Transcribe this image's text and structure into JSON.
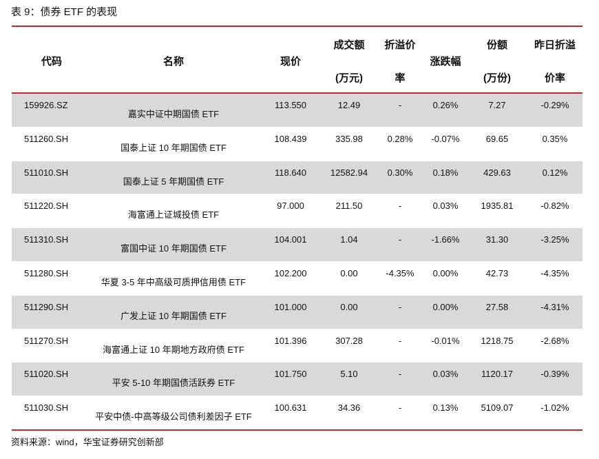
{
  "title": "表 9：债券 ETF 的表现",
  "headers": {
    "code": "代码",
    "name": "名称",
    "price": "现价",
    "volume_l1": "成交额",
    "volume_l2": "(万元)",
    "premium_l1": "折溢价",
    "premium_l2": "率",
    "change": "涨跌幅",
    "shares_l1": "份额",
    "shares_l2": "(万份)",
    "prev_premium_l1": "昨日折溢",
    "prev_premium_l2": "价率"
  },
  "rows": [
    {
      "code": "159926.SZ",
      "name": "嘉实中证中期国债 ETF",
      "price": "113.550",
      "volume": "12.49",
      "premium": "-",
      "change": "0.26%",
      "shares": "7.27",
      "prev_premium": "-0.29%"
    },
    {
      "code": "511260.SH",
      "name": "国泰上证 10 年期国债 ETF",
      "price": "108.439",
      "volume": "335.98",
      "premium": "0.28%",
      "change": "-0.07%",
      "shares": "69.65",
      "prev_premium": "0.35%"
    },
    {
      "code": "511010.SH",
      "name": "国泰上证 5 年期国债 ETF",
      "price": "118.640",
      "volume": "12582.94",
      "premium": "0.30%",
      "change": "0.18%",
      "shares": "429.63",
      "prev_premium": "0.12%"
    },
    {
      "code": "511220.SH",
      "name": "海富通上证城投债 ETF",
      "price": "97.000",
      "volume": "211.50",
      "premium": "-",
      "change": "0.03%",
      "shares": "1935.81",
      "prev_premium": "-0.82%"
    },
    {
      "code": "511310.SH",
      "name": "富国中证 10 年期国债 ETF",
      "price": "104.001",
      "volume": "1.04",
      "premium": "-",
      "change": "-1.66%",
      "shares": "31.30",
      "prev_premium": "-3.25%"
    },
    {
      "code": "511280.SH",
      "name": "华夏 3-5 年中高级可质押信用债 ETF",
      "price": "102.200",
      "volume": "0.00",
      "premium": "-4.35%",
      "change": "0.00%",
      "shares": "42.73",
      "prev_premium": "-4.35%"
    },
    {
      "code": "511290.SH",
      "name": "广发上证 10 年期国债 ETF",
      "price": "101.000",
      "volume": "0.00",
      "premium": "-",
      "change": "0.00%",
      "shares": "27.58",
      "prev_premium": "-4.31%"
    },
    {
      "code": "511270.SH",
      "name": "海富通上证 10 年期地方政府债 ETF",
      "price": "101.396",
      "volume": "307.28",
      "premium": "-",
      "change": "-0.01%",
      "shares": "1218.75",
      "prev_premium": "-2.68%"
    },
    {
      "code": "511020.SH",
      "name": "平安 5-10 年期国债活跃券 ETF",
      "price": "101.750",
      "volume": "5.10",
      "premium": "-",
      "change": "0.03%",
      "shares": "1120.17",
      "prev_premium": "-0.39%"
    },
    {
      "code": "511030.SH",
      "name": "平安中债-中高等级公司债利差因子 ETF",
      "price": "100.631",
      "volume": "34.36",
      "premium": "-",
      "change": "0.13%",
      "shares": "5109.07",
      "prev_premium": "-1.02%"
    }
  ],
  "source": "资料来源：wind，华宝证券研究创新部",
  "colors": {
    "rule": "#c0282d",
    "shade": "#d9d9d9"
  }
}
